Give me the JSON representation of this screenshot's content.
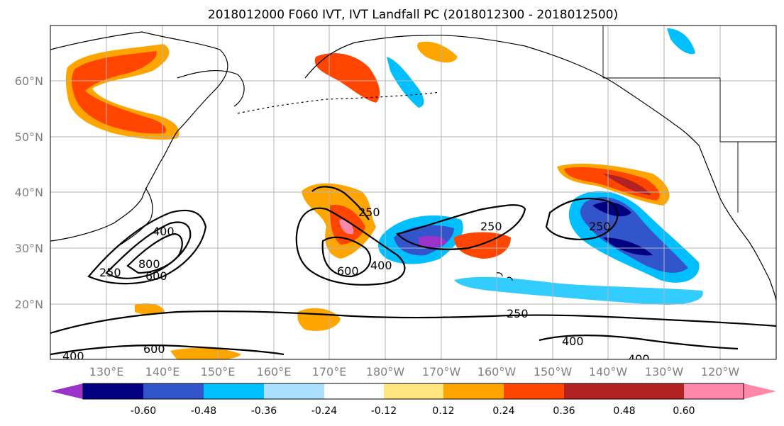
{
  "title": "2018012000 F060 IVT, IVT Landfall PC (2018012300 - 2018012500)",
  "lat_labels": [
    "60°N",
    "50°N",
    "40°N",
    "30°N",
    "20°N"
  ],
  "lon_labels": [
    "130°E",
    "140°E",
    "150°E",
    "160°E",
    "170°E",
    "180°W",
    "170°W",
    "160°W",
    "150°W",
    "140°W",
    "130°W",
    "120°W"
  ],
  "colorbar": {
    "colors": [
      "#9933cc",
      "#000080",
      "#3355cc",
      "#00bfff",
      "#aadfff",
      "#ffffff",
      "#ffe680",
      "#ffa500",
      "#ff4500",
      "#b22222",
      "#ff88aa"
    ],
    "labels": [
      "-0.60",
      "-0.48",
      "-0.36",
      "-0.24",
      "-0.12",
      "0.12",
      "0.24",
      "0.36",
      "0.48",
      "0.60"
    ]
  },
  "contour_labels": [
    "250",
    "400",
    "800",
    "600",
    "250",
    "600",
    "400",
    "250",
    "250",
    "250",
    "400",
    "600",
    "400",
    "400"
  ]
}
